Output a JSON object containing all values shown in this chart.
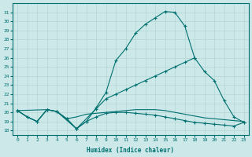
{
  "xlabel": "Humidex (Indice chaleur)",
  "xlim": [
    -0.5,
    23.5
  ],
  "ylim": [
    17.5,
    32.0
  ],
  "yticks": [
    18,
    19,
    20,
    21,
    22,
    23,
    24,
    25,
    26,
    27,
    28,
    29,
    30,
    31
  ],
  "xticks": [
    0,
    1,
    2,
    3,
    4,
    5,
    6,
    7,
    8,
    9,
    10,
    11,
    12,
    13,
    14,
    15,
    16,
    17,
    18,
    19,
    20,
    21,
    22,
    23
  ],
  "background_color": "#cde8e8",
  "grid_color": "#b8d8d8",
  "line_color": "#007070",
  "lines": [
    {
      "x": [
        0,
        1,
        2,
        3,
        4,
        5,
        6,
        7,
        8,
        9,
        10,
        11,
        12,
        13,
        14,
        15,
        16,
        17,
        18
      ],
      "y": [
        20.2,
        19.5,
        19.0,
        20.3,
        20.1,
        19.3,
        18.2,
        19.0,
        20.5,
        22.2,
        25.7,
        27.0,
        28.7,
        29.7,
        30.4,
        31.1,
        31.0,
        29.5,
        26.0
      ],
      "marker": true
    },
    {
      "x": [
        0,
        3,
        4,
        6,
        8,
        9,
        10,
        11,
        12,
        13,
        14,
        15,
        16,
        17,
        18,
        19,
        20,
        21,
        22,
        23
      ],
      "y": [
        20.2,
        20.3,
        20.1,
        18.2,
        20.4,
        21.5,
        22.0,
        22.5,
        23.0,
        23.5,
        24.0,
        24.5,
        25.0,
        25.5,
        26.0,
        24.5,
        23.5,
        21.3,
        19.5,
        18.9
      ],
      "marker": true
    },
    {
      "x": [
        0,
        1,
        2,
        3,
        4,
        5,
        6,
        7,
        8,
        9,
        10,
        11,
        12,
        13,
        14,
        15,
        16,
        17,
        18,
        19,
        20,
        21,
        22,
        23
      ],
      "y": [
        20.2,
        19.5,
        19.0,
        20.3,
        20.1,
        19.3,
        19.5,
        19.8,
        19.9,
        20.0,
        20.1,
        20.2,
        20.3,
        20.3,
        20.3,
        20.2,
        20.0,
        19.8,
        19.6,
        19.4,
        19.3,
        19.2,
        19.1,
        19.0
      ],
      "marker": false
    },
    {
      "x": [
        0,
        1,
        2,
        3,
        4,
        5,
        6,
        7,
        8,
        9,
        10,
        11,
        12,
        13,
        14,
        15,
        16,
        17,
        18,
        19,
        20,
        21,
        22,
        23
      ],
      "y": [
        20.2,
        19.5,
        19.0,
        20.3,
        20.1,
        19.3,
        18.2,
        19.0,
        19.5,
        19.9,
        20.0,
        20.0,
        19.9,
        19.8,
        19.7,
        19.5,
        19.3,
        19.1,
        18.9,
        18.8,
        18.7,
        18.6,
        18.5,
        18.9
      ],
      "marker": true
    }
  ]
}
